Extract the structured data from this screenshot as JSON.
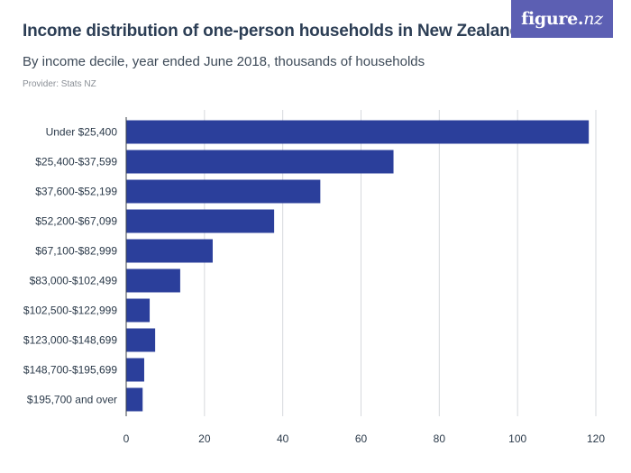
{
  "header": {
    "title": "Income distribution of one-person households in New Zealand",
    "subtitle": "By income decile, year ended June 2018, thousands of households",
    "provider": "Provider: Stats NZ"
  },
  "logo": {
    "text_main": "figure.",
    "text_accent": "nz",
    "background_color": "#5c5fb3"
  },
  "colors": {
    "bar": "#2b3f9b",
    "grid": "#d6d9dd"
  },
  "chart_data": {
    "type": "bar",
    "orientation": "horizontal",
    "categories": [
      "Under $25,400",
      "$25,400-$37,599",
      "$37,600-$52,199",
      "$52,200-$67,099",
      "$67,100-$82,999",
      "$83,000-$102,499",
      "$102,500-$122,999",
      "$123,000-$148,699",
      "$148,700-$195,699",
      "$195,700 and over"
    ],
    "values": [
      118.2,
      68.3,
      49.6,
      37.8,
      22.1,
      13.8,
      6.0,
      7.4,
      4.6,
      4.2
    ],
    "xlim": [
      0,
      120
    ],
    "xticks": [
      0,
      20,
      40,
      60,
      80,
      100,
      120
    ],
    "grid": true,
    "title": "Income distribution of one-person households in New Zealand",
    "subtitle": "By income decile, year ended June 2018, thousands of households"
  }
}
